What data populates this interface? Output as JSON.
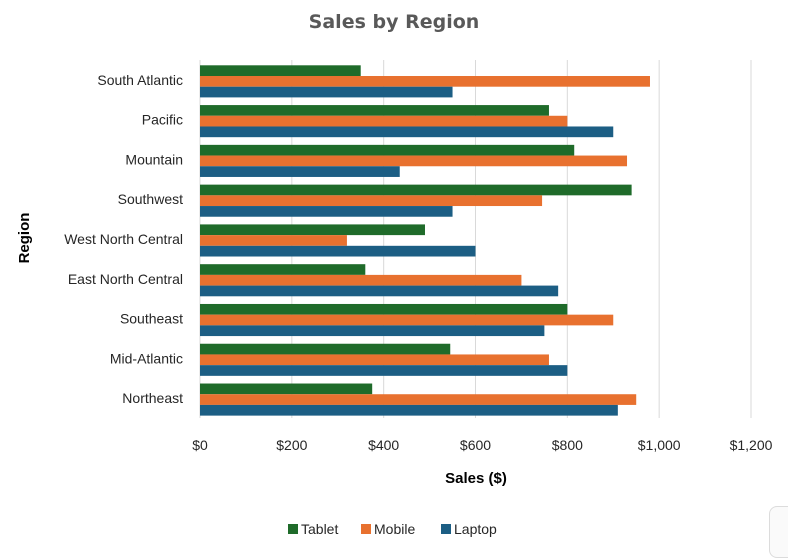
{
  "chart_data": {
    "type": "bar",
    "orientation": "horizontal",
    "title": "Sales by Region",
    "xlabel": "Sales ($)",
    "ylabel": "Region",
    "xlim": [
      0,
      1200
    ],
    "x_ticks": [
      0,
      200,
      400,
      600,
      800,
      1000,
      1200
    ],
    "x_tick_labels": [
      "$0",
      "$200",
      "$400",
      "$600",
      "$800",
      "$1,000",
      "$1,200"
    ],
    "categories": [
      "South Atlantic",
      "Pacific",
      "Mountain",
      "Southwest",
      "West North Central",
      "East North Central",
      "Southeast",
      "Mid-Atlantic",
      "Northeast"
    ],
    "series": [
      {
        "name": "Tablet",
        "color": "#1f6b2a",
        "values": [
          350,
          760,
          815,
          940,
          490,
          360,
          800,
          545,
          375
        ]
      },
      {
        "name": "Mobile",
        "color": "#e8712f",
        "values": [
          980,
          800,
          930,
          745,
          320,
          700,
          900,
          760,
          950
        ]
      },
      {
        "name": "Laptop",
        "color": "#1c5e84",
        "values": [
          550,
          900,
          435,
          550,
          600,
          780,
          750,
          800,
          910
        ]
      }
    ],
    "grid": "vertical",
    "legend_position": "bottom"
  }
}
